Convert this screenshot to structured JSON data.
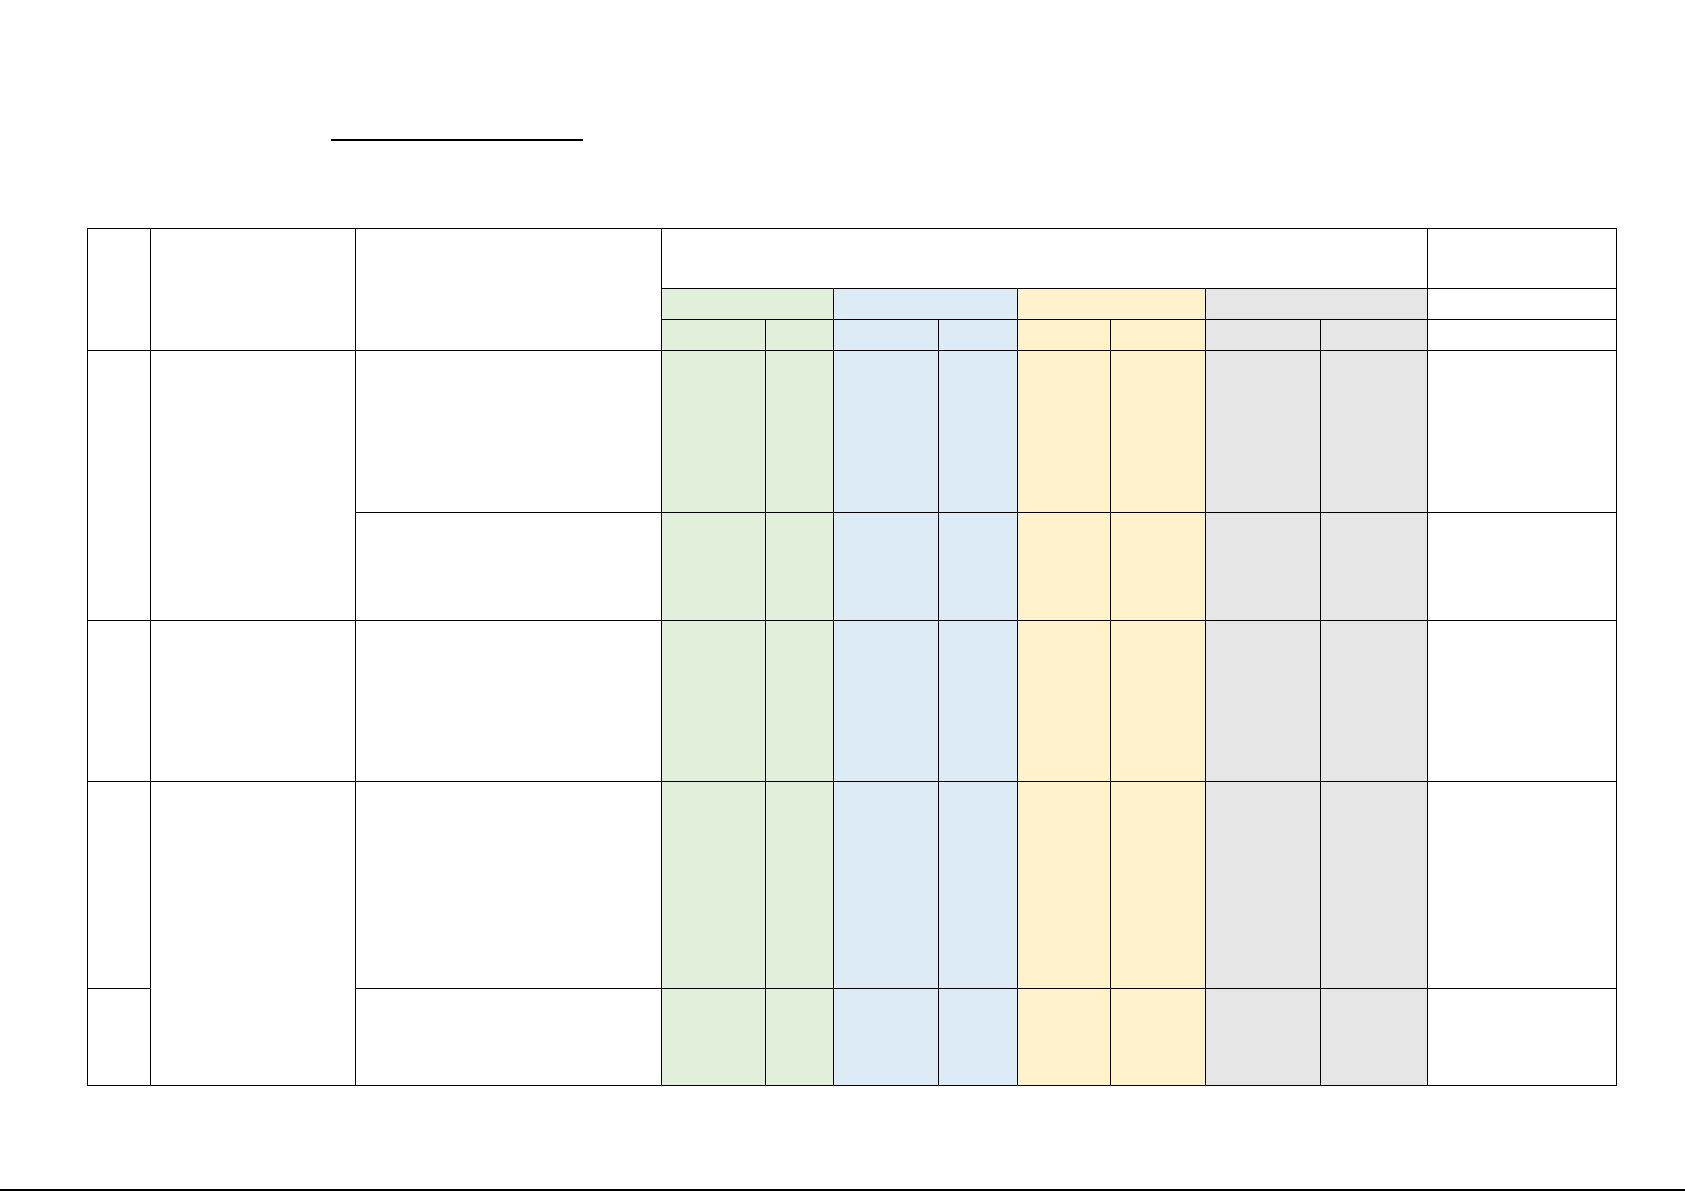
{
  "document": {
    "title": "",
    "colors": {
      "group_1": "#e2efda",
      "group_2": "#ddebf7",
      "group_3": "#fff2cc",
      "group_4": "#e7e6e6",
      "border": "#000000"
    }
  }
}
